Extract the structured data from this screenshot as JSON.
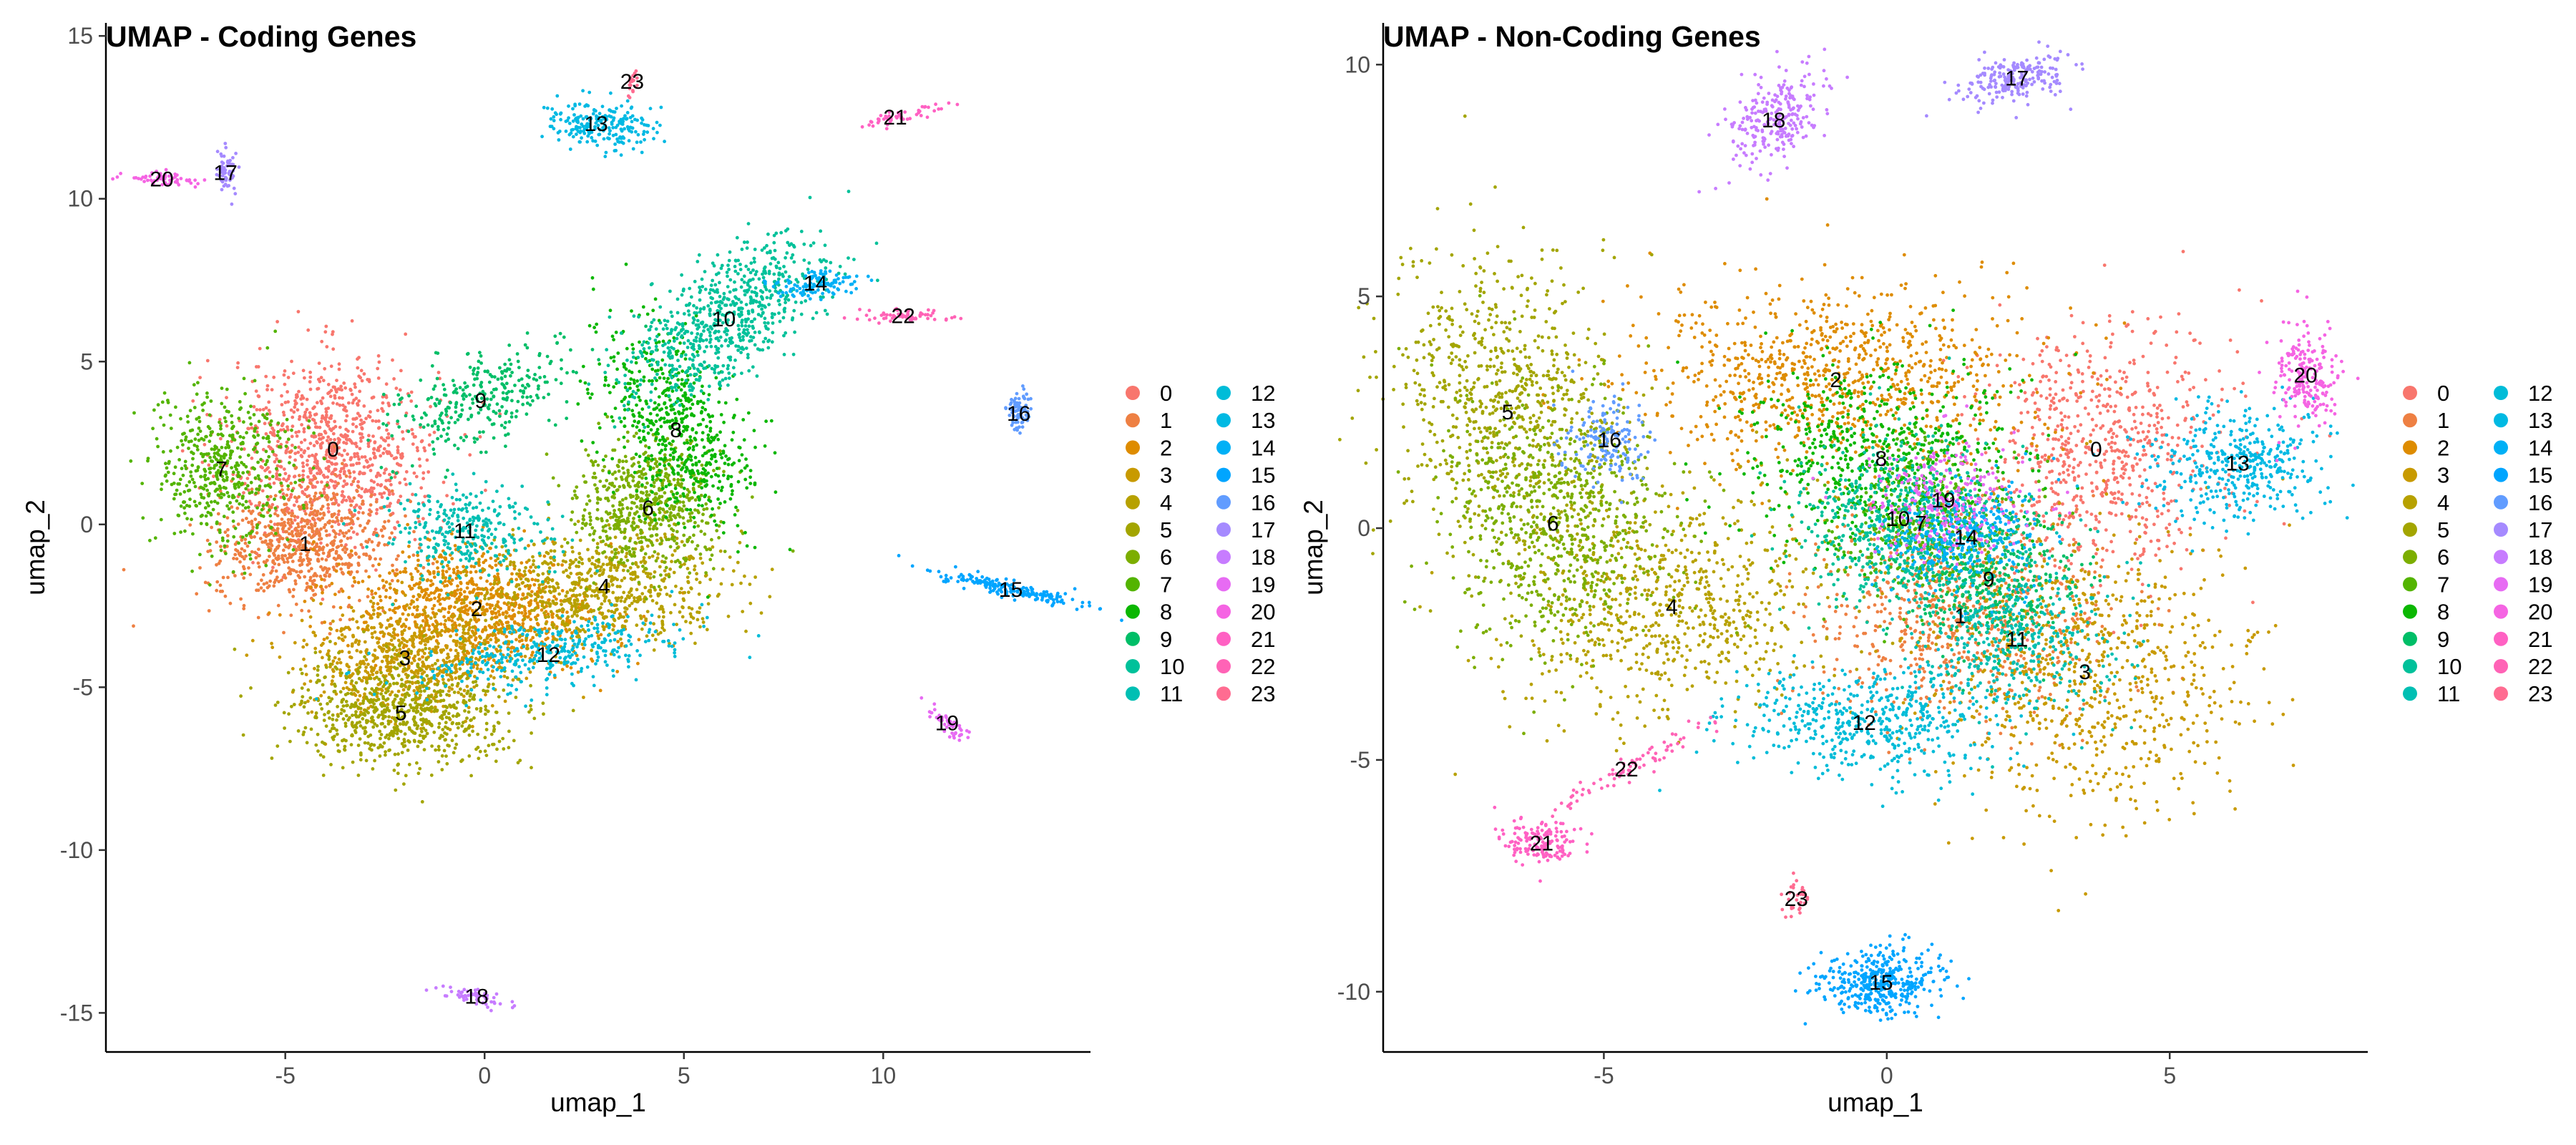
{
  "palette": [
    "#F8766D",
    "#EE8043",
    "#DE8C00",
    "#C89A00",
    "#B7A100",
    "#A3A500",
    "#7CAE00",
    "#53B400",
    "#0BB702",
    "#00BE67",
    "#00C19A",
    "#00BFB3",
    "#00BCD8",
    "#00B9E3",
    "#00B0F6",
    "#00A5FF",
    "#619CFF",
    "#A58AFF",
    "#C77CFF",
    "#E76BF3",
    "#F564E3",
    "#FF61C3",
    "#FF63B6",
    "#FF6C91"
  ],
  "chart_data": [
    {
      "type": "scatter",
      "title": "UMAP - Coding Genes",
      "xlabel": "umap_1",
      "ylabel": "umap_2",
      "xlim": [
        -9.5,
        15.2
      ],
      "ylim": [
        -16.2,
        15.4
      ],
      "xticks": [
        -5,
        0,
        5,
        10
      ],
      "yticks": [
        -15,
        -10,
        -5,
        0,
        5,
        10,
        15
      ],
      "xtick_labels": [
        "-5",
        "0",
        "5",
        "10"
      ],
      "ytick_labels": [
        "-15",
        "-10",
        "-5",
        "0",
        "5",
        "10",
        "15"
      ],
      "grid": false,
      "legend": "right",
      "legend_entries": [
        "0",
        "1",
        "2",
        "3",
        "4",
        "5",
        "6",
        "7",
        "8",
        "9",
        "10",
        "11",
        "12",
        "13",
        "14",
        "15",
        "16",
        "17",
        "18",
        "19",
        "20",
        "21",
        "22",
        "23"
      ],
      "clusters": [
        {
          "label": "0",
          "x": -3.8,
          "y": 2.3
        },
        {
          "label": "1",
          "x": -4.5,
          "y": -0.6
        },
        {
          "label": "2",
          "x": -0.2,
          "y": -2.6
        },
        {
          "label": "3",
          "x": -2.0,
          "y": -4.1
        },
        {
          "label": "4",
          "x": 3.0,
          "y": -1.9
        },
        {
          "label": "5",
          "x": -2.1,
          "y": -5.8
        },
        {
          "label": "6",
          "x": 4.1,
          "y": 0.5
        },
        {
          "label": "7",
          "x": -6.6,
          "y": 1.7
        },
        {
          "label": "8",
          "x": 4.8,
          "y": 2.9
        },
        {
          "label": "9",
          "x": -0.1,
          "y": 3.8
        },
        {
          "label": "10",
          "x": 6.0,
          "y": 6.3
        },
        {
          "label": "11",
          "x": -0.5,
          "y": -0.2
        },
        {
          "label": "12",
          "x": 1.6,
          "y": -4.0
        },
        {
          "label": "13",
          "x": 2.8,
          "y": 12.3
        },
        {
          "label": "14",
          "x": 8.3,
          "y": 7.4
        },
        {
          "label": "15",
          "x": 13.2,
          "y": -2.0
        },
        {
          "label": "16",
          "x": 13.4,
          "y": 3.4
        },
        {
          "label": "17",
          "x": -6.5,
          "y": 10.8
        },
        {
          "label": "18",
          "x": -0.2,
          "y": -14.5
        },
        {
          "label": "19",
          "x": 11.6,
          "y": -6.1
        },
        {
          "label": "20",
          "x": -8.1,
          "y": 10.6
        },
        {
          "label": "21",
          "x": 10.3,
          "y": 12.5
        },
        {
          "label": "22",
          "x": 10.5,
          "y": 6.4
        },
        {
          "label": "23",
          "x": 3.7,
          "y": 13.6
        }
      ]
    },
    {
      "type": "scatter",
      "title": "UMAP - Non-Coding Genes",
      "xlabel": "umap_1",
      "ylabel": "umap_2",
      "xlim": [
        -8.9,
        8.5
      ],
      "ylim": [
        -11.3,
        10.9
      ],
      "xticks": [
        -5,
        0,
        5
      ],
      "yticks": [
        -10,
        -5,
        0,
        5,
        10
      ],
      "xtick_labels": [
        "-5",
        "0",
        "5"
      ],
      "ytick_labels": [
        "-10",
        "-5",
        "0",
        "5",
        "10"
      ],
      "grid": false,
      "legend": "right",
      "legend_entries": [
        "0",
        "1",
        "2",
        "3",
        "4",
        "5",
        "6",
        "7",
        "8",
        "9",
        "10",
        "11",
        "12",
        "13",
        "14",
        "15",
        "16",
        "17",
        "18",
        "19",
        "20",
        "21",
        "22",
        "23"
      ],
      "clusters": [
        {
          "label": "0",
          "x": 3.7,
          "y": 1.7
        },
        {
          "label": "1",
          "x": 1.3,
          "y": -1.9
        },
        {
          "label": "2",
          "x": -0.9,
          "y": 3.2
        },
        {
          "label": "3",
          "x": 3.5,
          "y": -3.1
        },
        {
          "label": "4",
          "x": -3.8,
          "y": -1.7
        },
        {
          "label": "5",
          "x": -6.7,
          "y": 2.5
        },
        {
          "label": "6",
          "x": -5.9,
          "y": 0.1
        },
        {
          "label": "7",
          "x": 0.6,
          "y": 0.1
        },
        {
          "label": "8",
          "x": -0.1,
          "y": 1.5
        },
        {
          "label": "9",
          "x": 1.8,
          "y": -1.1
        },
        {
          "label": "10",
          "x": 0.2,
          "y": 0.2
        },
        {
          "label": "11",
          "x": 2.3,
          "y": -2.4
        },
        {
          "label": "12",
          "x": -0.4,
          "y": -4.2
        },
        {
          "label": "13",
          "x": 6.2,
          "y": 1.4
        },
        {
          "label": "14",
          "x": 1.4,
          "y": -0.2
        },
        {
          "label": "15",
          "x": -0.1,
          "y": -9.8
        },
        {
          "label": "16",
          "x": -4.9,
          "y": 1.9
        },
        {
          "label": "17",
          "x": 2.3,
          "y": 9.7
        },
        {
          "label": "18",
          "x": -2.0,
          "y": 8.8
        },
        {
          "label": "19",
          "x": 1.0,
          "y": 0.6
        },
        {
          "label": "20",
          "x": 7.4,
          "y": 3.3
        },
        {
          "label": "21",
          "x": -6.1,
          "y": -6.8
        },
        {
          "label": "22",
          "x": -4.6,
          "y": -5.2
        },
        {
          "label": "23",
          "x": -1.6,
          "y": -8.0
        }
      ]
    }
  ]
}
